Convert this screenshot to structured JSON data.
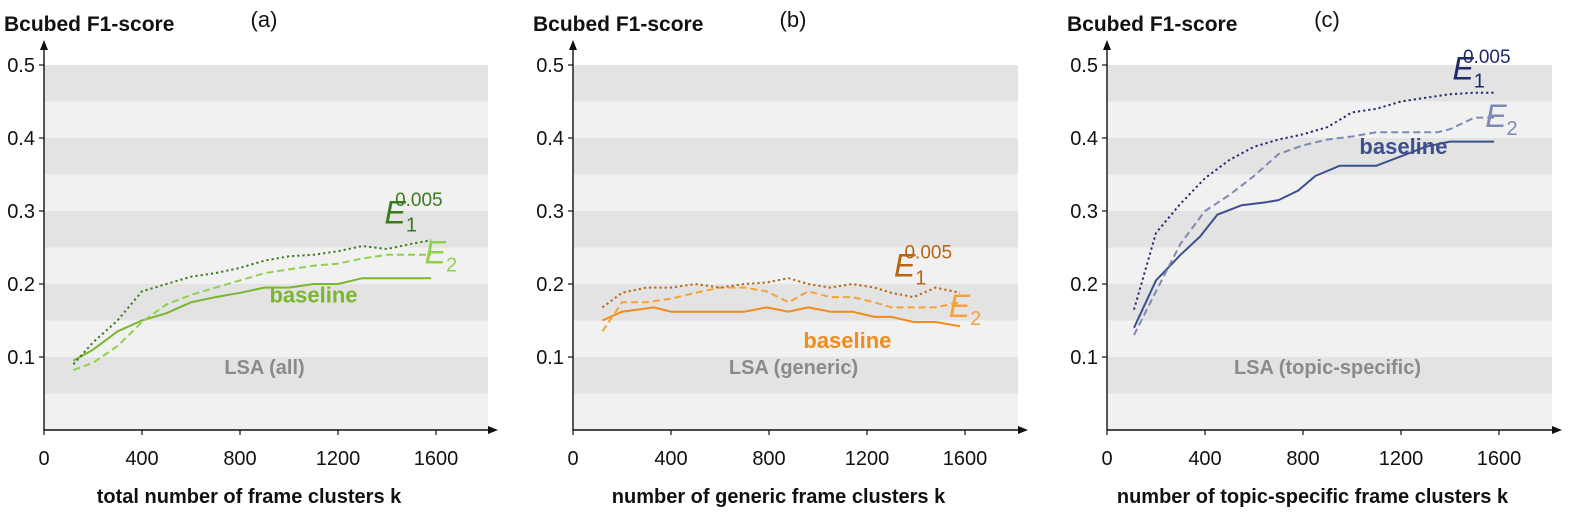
{
  "chart_data": [
    {
      "type": "line",
      "panel": "(a)",
      "title": "",
      "ylabel": "Bcubed F1-score",
      "xlabel": "total number of frame clusters k",
      "annotation": "LSA (all)",
      "xlim": [
        0,
        1800
      ],
      "ylim": [
        0,
        0.5
      ],
      "xticks": [
        0,
        400,
        800,
        1200,
        1600
      ],
      "yticks": [
        0.1,
        0.2,
        0.3,
        0.4,
        0.5
      ],
      "ytick_labels": [
        "0.1",
        "0.2",
        "0.3",
        "0.4",
        "0.5"
      ],
      "grid": "alternating horizontal bands",
      "colors": {
        "baseline": "#7ab62e",
        "E2": "#8fd14f",
        "E1": "#3c7a1e"
      },
      "series": [
        {
          "name": "baseline",
          "style": "solid",
          "x": [
            120,
            200,
            300,
            400,
            500,
            600,
            700,
            800,
            900,
            1000,
            1100,
            1200,
            1300,
            1400,
            1500,
            1580
          ],
          "y": [
            0.095,
            0.11,
            0.135,
            0.15,
            0.16,
            0.175,
            0.182,
            0.188,
            0.195,
            0.195,
            0.2,
            0.2,
            0.208,
            0.208,
            0.208,
            0.208
          ]
        },
        {
          "name": "E2",
          "style": "dashed",
          "x": [
            120,
            200,
            300,
            400,
            500,
            600,
            700,
            800,
            900,
            1000,
            1100,
            1200,
            1300,
            1400,
            1500,
            1580
          ],
          "y": [
            0.082,
            0.092,
            0.115,
            0.148,
            0.172,
            0.185,
            0.195,
            0.205,
            0.215,
            0.22,
            0.225,
            0.228,
            0.235,
            0.24,
            0.24,
            0.24
          ]
        },
        {
          "name": "E_1^{0.005}",
          "style": "dotted",
          "x": [
            120,
            200,
            300,
            400,
            500,
            600,
            700,
            800,
            900,
            1000,
            1100,
            1200,
            1300,
            1400,
            1500,
            1580
          ],
          "y": [
            0.09,
            0.12,
            0.15,
            0.19,
            0.2,
            0.21,
            0.215,
            0.222,
            0.232,
            0.238,
            0.24,
            0.245,
            0.252,
            0.248,
            0.255,
            0.26
          ]
        }
      ],
      "labels": {
        "baseline": "baseline",
        "E2_main": "E",
        "E2_sub": "2",
        "E1_main": "E",
        "E1_sub": "1",
        "E1_sup": "0.005"
      }
    },
    {
      "type": "line",
      "panel": "(b)",
      "title": "",
      "ylabel": "Bcubed F1-score",
      "xlabel": "number of generic frame clusters k",
      "annotation": "LSA (generic)",
      "xlim": [
        0,
        1800
      ],
      "ylim": [
        0,
        0.5
      ],
      "xticks": [
        0,
        400,
        800,
        1200,
        1600
      ],
      "yticks": [
        0.1,
        0.2,
        0.3,
        0.4,
        0.5
      ],
      "ytick_labels": [
        "0.1",
        "0.2",
        "0.3",
        "0.4",
        "0.5"
      ],
      "grid": "alternating horizontal bands",
      "colors": {
        "baseline": "#f28b1a",
        "E2": "#f7a13a",
        "E1": "#b8650f"
      },
      "series": [
        {
          "name": "baseline",
          "style": "solid",
          "x": [
            120,
            200,
            330,
            400,
            500,
            600,
            700,
            790,
            880,
            960,
            1050,
            1140,
            1230,
            1300,
            1390,
            1480,
            1580
          ],
          "y": [
            0.15,
            0.162,
            0.168,
            0.162,
            0.162,
            0.162,
            0.162,
            0.168,
            0.162,
            0.168,
            0.162,
            0.162,
            0.155,
            0.155,
            0.148,
            0.148,
            0.142
          ]
        },
        {
          "name": "E2",
          "style": "dashed",
          "x": [
            120,
            200,
            300,
            400,
            500,
            600,
            700,
            790,
            880,
            960,
            1050,
            1140,
            1230,
            1300,
            1390,
            1480,
            1580
          ],
          "y": [
            0.135,
            0.175,
            0.175,
            0.18,
            0.188,
            0.195,
            0.195,
            0.19,
            0.175,
            0.19,
            0.182,
            0.182,
            0.175,
            0.168,
            0.168,
            0.168,
            0.175
          ]
        },
        {
          "name": "E_1^{0.005}",
          "style": "dotted",
          "x": [
            120,
            200,
            300,
            400,
            500,
            600,
            700,
            790,
            880,
            960,
            1050,
            1140,
            1230,
            1300,
            1390,
            1480,
            1580
          ],
          "y": [
            0.168,
            0.188,
            0.195,
            0.195,
            0.2,
            0.195,
            0.2,
            0.202,
            0.208,
            0.2,
            0.195,
            0.2,
            0.195,
            0.188,
            0.182,
            0.195,
            0.188
          ]
        }
      ],
      "labels": {
        "baseline": "baseline",
        "E2_main": "E",
        "E2_sub": "2",
        "E1_main": "E",
        "E1_sub": "1",
        "E1_sup": "0.005"
      }
    },
    {
      "type": "line",
      "panel": "(c)",
      "title": "",
      "ylabel": "Bcubed F1-score",
      "xlabel": "number of topic-specific frame clusters k",
      "annotation": "LSA (topic-specific)",
      "xlim": [
        0,
        1800
      ],
      "ylim": [
        0,
        0.5
      ],
      "xticks": [
        0,
        400,
        800,
        1200,
        1600
      ],
      "yticks": [
        0.1,
        0.2,
        0.3,
        0.4,
        0.5
      ],
      "ytick_labels": [
        "0.1",
        "0.2",
        "0.3",
        "0.4",
        "0.5"
      ],
      "grid": "alternating horizontal bands",
      "colors": {
        "baseline": "#3d4f8c",
        "E2": "#7e8ab5",
        "E1": "#1f2a6b"
      },
      "series": [
        {
          "name": "baseline",
          "style": "solid",
          "x": [
            110,
            200,
            300,
            380,
            450,
            550,
            650,
            700,
            780,
            850,
            950,
            1000,
            1100,
            1200,
            1300,
            1400,
            1500,
            1580
          ],
          "y": [
            0.14,
            0.205,
            0.24,
            0.265,
            0.295,
            0.308,
            0.312,
            0.315,
            0.328,
            0.348,
            0.362,
            0.362,
            0.362,
            0.375,
            0.388,
            0.395,
            0.395,
            0.395
          ]
        },
        {
          "name": "E2",
          "style": "dashed",
          "x": [
            110,
            200,
            300,
            400,
            500,
            600,
            700,
            800,
            900,
            1000,
            1100,
            1200,
            1300,
            1350,
            1400,
            1500,
            1580
          ],
          "y": [
            0.13,
            0.19,
            0.255,
            0.3,
            0.322,
            0.348,
            0.378,
            0.39,
            0.398,
            0.402,
            0.408,
            0.408,
            0.408,
            0.408,
            0.412,
            0.428,
            0.428
          ]
        },
        {
          "name": "E_1^{0.005}",
          "style": "dotted",
          "x": [
            110,
            200,
            300,
            400,
            500,
            600,
            700,
            800,
            900,
            950,
            1000,
            1100,
            1200,
            1300,
            1400,
            1500,
            1580
          ],
          "y": [
            0.165,
            0.27,
            0.31,
            0.345,
            0.37,
            0.388,
            0.398,
            0.405,
            0.415,
            0.425,
            0.435,
            0.44,
            0.45,
            0.455,
            0.46,
            0.462,
            0.462
          ]
        }
      ],
      "labels": {
        "baseline": "baseline",
        "E2_main": "E",
        "E2_sub": "2",
        "E1_main": "E",
        "E1_sub": "1",
        "E1_sup": "0.005"
      }
    }
  ]
}
